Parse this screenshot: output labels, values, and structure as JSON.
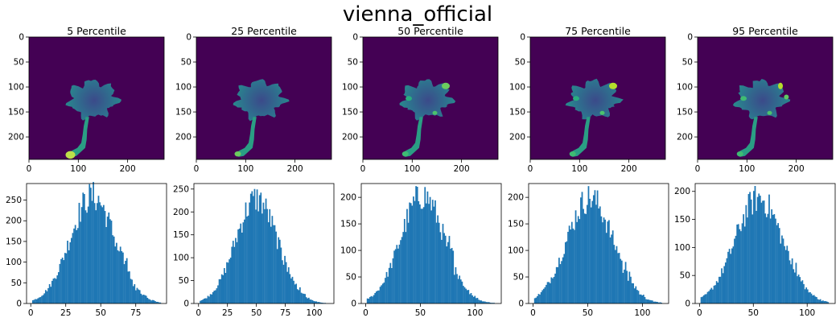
{
  "figure": {
    "title": "vienna_official"
  },
  "colors": {
    "bar": "#1f77b4",
    "map_background": "#440154"
  },
  "chart_data": [
    {
      "type": "heatmap",
      "title": "5 Percentile",
      "xlim": [
        0,
        274
      ],
      "ylim": [
        245,
        0
      ],
      "xticks": [
        "0",
        "100",
        "200"
      ],
      "yticks": [
        "0",
        "50",
        "100",
        "150",
        "200"
      ]
    },
    {
      "type": "heatmap",
      "title": "25 Percentile",
      "xlim": [
        0,
        274
      ],
      "ylim": [
        245,
        0
      ],
      "xticks": [
        "0",
        "100",
        "200"
      ],
      "yticks": [
        "0",
        "50",
        "100",
        "150",
        "200"
      ]
    },
    {
      "type": "heatmap",
      "title": "50 Percentile",
      "xlim": [
        0,
        274
      ],
      "ylim": [
        245,
        0
      ],
      "xticks": [
        "0",
        "100",
        "200"
      ],
      "yticks": [
        "0",
        "50",
        "100",
        "150",
        "200"
      ]
    },
    {
      "type": "heatmap",
      "title": "75 Percentile",
      "xlim": [
        0,
        274
      ],
      "ylim": [
        245,
        0
      ],
      "xticks": [
        "0",
        "100",
        "200"
      ],
      "yticks": [
        "0",
        "50",
        "100",
        "150",
        "200"
      ]
    },
    {
      "type": "heatmap",
      "title": "95 Percentile",
      "xlim": [
        0,
        274
      ],
      "ylim": [
        245,
        0
      ],
      "xticks": [
        "0",
        "100",
        "200"
      ],
      "yticks": [
        "0",
        "50",
        "100",
        "150",
        "200"
      ]
    },
    {
      "type": "bar",
      "xlim": [
        -3,
        97
      ],
      "ylim": [
        0,
        290
      ],
      "mean": 44,
      "sd": 16,
      "peak": 270,
      "range": [
        1,
        93
      ],
      "xticks": [
        "0",
        "25",
        "50",
        "75"
      ],
      "yticks": [
        "0",
        "50",
        "100",
        "150",
        "200",
        "250"
      ]
    },
    {
      "type": "bar",
      "xlim": [
        -4,
        117
      ],
      "ylim": [
        0,
        262
      ],
      "mean": 50,
      "sd": 18,
      "peak": 238,
      "range": [
        1,
        110
      ],
      "xticks": [
        "0",
        "25",
        "50",
        "75",
        "100"
      ],
      "yticks": [
        "0",
        "50",
        "100",
        "150",
        "200",
        "250"
      ]
    },
    {
      "type": "bar",
      "xlim": [
        -4,
        124
      ],
      "ylim": [
        0,
        226
      ],
      "mean": 52,
      "sd": 20,
      "peak": 212,
      "range": [
        1,
        118
      ],
      "xticks": [
        "0",
        "50",
        "100"
      ],
      "yticks": [
        "0",
        "50",
        "100",
        "150",
        "200"
      ]
    },
    {
      "type": "bar",
      "xlim": [
        -4,
        124
      ],
      "ylim": [
        0,
        226
      ],
      "mean": 52,
      "sd": 21,
      "peak": 207,
      "range": [
        1,
        118
      ],
      "xticks": [
        "0",
        "50",
        "100"
      ],
      "yticks": [
        "0",
        "50",
        "100",
        "150",
        "200"
      ]
    },
    {
      "type": "bar",
      "xlim": [
        -4,
        126
      ],
      "ylim": [
        0,
        214
      ],
      "mean": 55,
      "sd": 22,
      "peak": 196,
      "range": [
        1,
        120
      ],
      "xticks": [
        "0",
        "50",
        "100"
      ],
      "yticks": [
        "0",
        "50",
        "100",
        "150",
        "200"
      ]
    }
  ]
}
